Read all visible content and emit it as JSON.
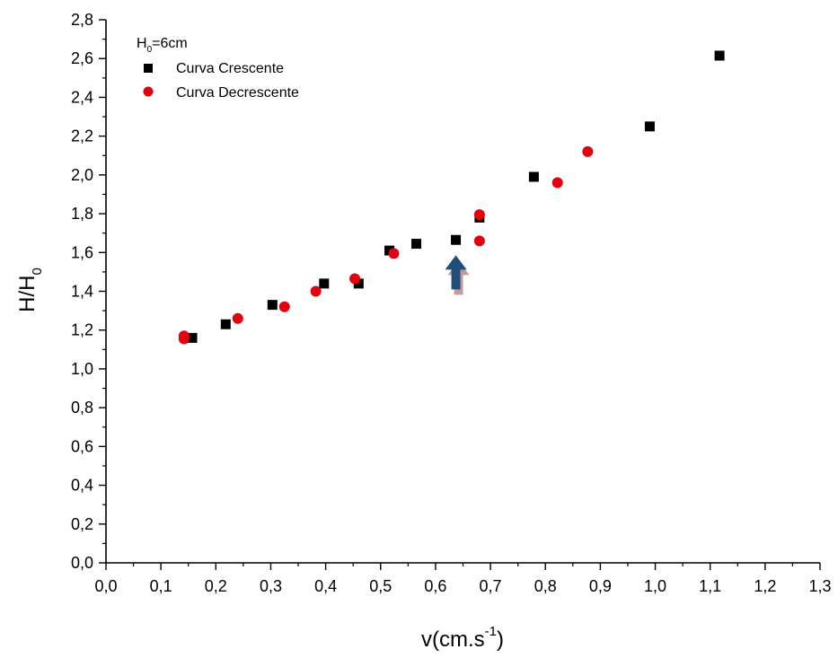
{
  "chart_data": {
    "type": "scatter",
    "title": "",
    "xlabel": {
      "main": "v(cm.s",
      "sup": "-1",
      "tail": ")"
    },
    "ylabel": {
      "main": "H/H",
      "sub": "0"
    },
    "xlim": [
      0.0,
      1.3
    ],
    "ylim": [
      0.0,
      2.8
    ],
    "x_ticks": [
      "0,0",
      "0,1",
      "0,2",
      "0,3",
      "0,4",
      "0,5",
      "0,6",
      "0,7",
      "0,8",
      "0,9",
      "1,0",
      "1,1",
      "1,2",
      "1,3"
    ],
    "y_ticks": [
      "0,0",
      "0,2",
      "0,4",
      "0,6",
      "0,8",
      "1,0",
      "1,2",
      "1,4",
      "1,6",
      "1,8",
      "2,0",
      "2,2",
      "2,4",
      "2,6",
      "2,8"
    ],
    "grid": false,
    "legend_position": "top-left",
    "legend_title": {
      "main": "H",
      "sub": "0",
      "tail": "=6cm"
    },
    "series": [
      {
        "name": "Curva Crescente",
        "marker": "square",
        "color": "#000000",
        "points": [
          [
            0.157,
            1.16
          ],
          [
            0.218,
            1.23
          ],
          [
            0.303,
            1.33
          ],
          [
            0.397,
            1.44
          ],
          [
            0.46,
            1.44
          ],
          [
            0.516,
            1.61
          ],
          [
            0.565,
            1.645
          ],
          [
            0.637,
            1.665
          ],
          [
            0.68,
            1.78
          ],
          [
            0.779,
            1.99
          ],
          [
            0.99,
            2.25
          ],
          [
            1.117,
            2.615
          ]
        ]
      },
      {
        "name": "Curva Decrescente",
        "marker": "circle",
        "color": "#e3000f",
        "points": [
          [
            0.142,
            1.17
          ],
          [
            0.142,
            1.155
          ],
          [
            0.24,
            1.26
          ],
          [
            0.325,
            1.32
          ],
          [
            0.382,
            1.4
          ],
          [
            0.453,
            1.465
          ],
          [
            0.524,
            1.595
          ],
          [
            0.68,
            1.795
          ],
          [
            0.68,
            1.66
          ],
          [
            0.822,
            1.96
          ],
          [
            0.877,
            2.12
          ]
        ]
      }
    ],
    "annotations": [
      {
        "type": "arrow",
        "direction": "up",
        "x": 0.637,
        "y": 1.41,
        "color": "#1f4e79",
        "shadow_color": "#c49a9a"
      }
    ]
  }
}
